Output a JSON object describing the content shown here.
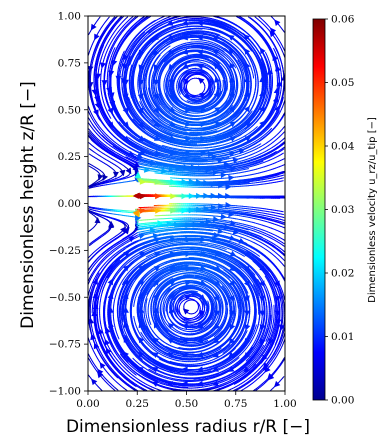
{
  "chart_data": {
    "type": "streamplot",
    "xlabel": "Dimensionless radius r/R [−]",
    "ylabel": "Dimensionless height z/R [−]",
    "xlim": [
      0.0,
      1.0
    ],
    "ylim": [
      -1.0,
      1.0
    ],
    "xticks": [
      "0.00",
      "0.25",
      "0.50",
      "0.75",
      "1.00"
    ],
    "yticks": [
      "1.00",
      "0.75",
      "0.50",
      "0.25",
      "0.00",
      "−0.25",
      "−0.50",
      "−0.75",
      "−1.00"
    ],
    "colorbar": {
      "label": "Dimensionless velocity u_rz/u_tip [−]",
      "range": [
        0.0,
        0.06
      ],
      "ticks": [
        "0.00",
        "0.01",
        "0.02",
        "0.03",
        "0.04",
        "0.05",
        "0.06"
      ],
      "colormap": "jet"
    },
    "vortices": [
      {
        "center_r": 0.55,
        "center_z": 0.62,
        "direction": "counterclockwise"
      },
      {
        "center_r": 0.52,
        "center_z": -0.55,
        "direction": "clockwise"
      }
    ],
    "jet": {
      "origin_r": 0.25,
      "origin_z": 0.02,
      "peak_velocity": 0.06
    }
  }
}
